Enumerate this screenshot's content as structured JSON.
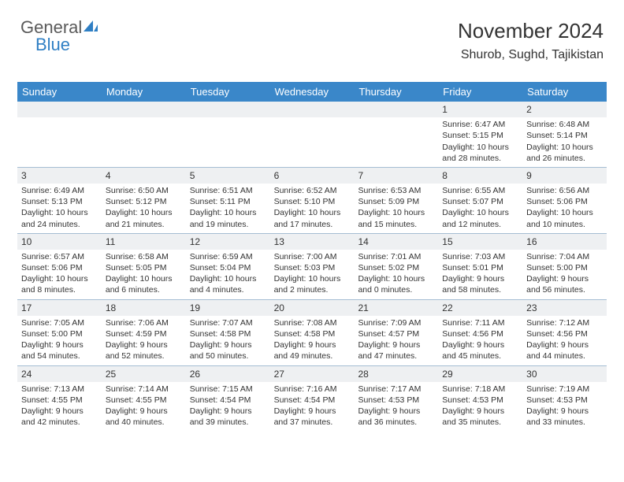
{
  "logo": {
    "text1": "General",
    "text2": "Blue"
  },
  "title": "November 2024",
  "location": "Shurob, Sughd, Tajikistan",
  "colors": {
    "header_bg": "#3a87c9",
    "header_text": "#ffffff",
    "daynum_bg": "#eef0f2",
    "border": "#a5bdd3",
    "logo_gray": "#5a5a5a",
    "logo_blue": "#2f7fc4"
  },
  "day_headers": [
    "Sunday",
    "Monday",
    "Tuesday",
    "Wednesday",
    "Thursday",
    "Friday",
    "Saturday"
  ],
  "weeks": [
    [
      null,
      null,
      null,
      null,
      null,
      {
        "n": "1",
        "sunrise": "Sunrise: 6:47 AM",
        "sunset": "Sunset: 5:15 PM",
        "daylight": "Daylight: 10 hours and 28 minutes."
      },
      {
        "n": "2",
        "sunrise": "Sunrise: 6:48 AM",
        "sunset": "Sunset: 5:14 PM",
        "daylight": "Daylight: 10 hours and 26 minutes."
      }
    ],
    [
      {
        "n": "3",
        "sunrise": "Sunrise: 6:49 AM",
        "sunset": "Sunset: 5:13 PM",
        "daylight": "Daylight: 10 hours and 24 minutes."
      },
      {
        "n": "4",
        "sunrise": "Sunrise: 6:50 AM",
        "sunset": "Sunset: 5:12 PM",
        "daylight": "Daylight: 10 hours and 21 minutes."
      },
      {
        "n": "5",
        "sunrise": "Sunrise: 6:51 AM",
        "sunset": "Sunset: 5:11 PM",
        "daylight": "Daylight: 10 hours and 19 minutes."
      },
      {
        "n": "6",
        "sunrise": "Sunrise: 6:52 AM",
        "sunset": "Sunset: 5:10 PM",
        "daylight": "Daylight: 10 hours and 17 minutes."
      },
      {
        "n": "7",
        "sunrise": "Sunrise: 6:53 AM",
        "sunset": "Sunset: 5:09 PM",
        "daylight": "Daylight: 10 hours and 15 minutes."
      },
      {
        "n": "8",
        "sunrise": "Sunrise: 6:55 AM",
        "sunset": "Sunset: 5:07 PM",
        "daylight": "Daylight: 10 hours and 12 minutes."
      },
      {
        "n": "9",
        "sunrise": "Sunrise: 6:56 AM",
        "sunset": "Sunset: 5:06 PM",
        "daylight": "Daylight: 10 hours and 10 minutes."
      }
    ],
    [
      {
        "n": "10",
        "sunrise": "Sunrise: 6:57 AM",
        "sunset": "Sunset: 5:06 PM",
        "daylight": "Daylight: 10 hours and 8 minutes."
      },
      {
        "n": "11",
        "sunrise": "Sunrise: 6:58 AM",
        "sunset": "Sunset: 5:05 PM",
        "daylight": "Daylight: 10 hours and 6 minutes."
      },
      {
        "n": "12",
        "sunrise": "Sunrise: 6:59 AM",
        "sunset": "Sunset: 5:04 PM",
        "daylight": "Daylight: 10 hours and 4 minutes."
      },
      {
        "n": "13",
        "sunrise": "Sunrise: 7:00 AM",
        "sunset": "Sunset: 5:03 PM",
        "daylight": "Daylight: 10 hours and 2 minutes."
      },
      {
        "n": "14",
        "sunrise": "Sunrise: 7:01 AM",
        "sunset": "Sunset: 5:02 PM",
        "daylight": "Daylight: 10 hours and 0 minutes."
      },
      {
        "n": "15",
        "sunrise": "Sunrise: 7:03 AM",
        "sunset": "Sunset: 5:01 PM",
        "daylight": "Daylight: 9 hours and 58 minutes."
      },
      {
        "n": "16",
        "sunrise": "Sunrise: 7:04 AM",
        "sunset": "Sunset: 5:00 PM",
        "daylight": "Daylight: 9 hours and 56 minutes."
      }
    ],
    [
      {
        "n": "17",
        "sunrise": "Sunrise: 7:05 AM",
        "sunset": "Sunset: 5:00 PM",
        "daylight": "Daylight: 9 hours and 54 minutes."
      },
      {
        "n": "18",
        "sunrise": "Sunrise: 7:06 AM",
        "sunset": "Sunset: 4:59 PM",
        "daylight": "Daylight: 9 hours and 52 minutes."
      },
      {
        "n": "19",
        "sunrise": "Sunrise: 7:07 AM",
        "sunset": "Sunset: 4:58 PM",
        "daylight": "Daylight: 9 hours and 50 minutes."
      },
      {
        "n": "20",
        "sunrise": "Sunrise: 7:08 AM",
        "sunset": "Sunset: 4:58 PM",
        "daylight": "Daylight: 9 hours and 49 minutes."
      },
      {
        "n": "21",
        "sunrise": "Sunrise: 7:09 AM",
        "sunset": "Sunset: 4:57 PM",
        "daylight": "Daylight: 9 hours and 47 minutes."
      },
      {
        "n": "22",
        "sunrise": "Sunrise: 7:11 AM",
        "sunset": "Sunset: 4:56 PM",
        "daylight": "Daylight: 9 hours and 45 minutes."
      },
      {
        "n": "23",
        "sunrise": "Sunrise: 7:12 AM",
        "sunset": "Sunset: 4:56 PM",
        "daylight": "Daylight: 9 hours and 44 minutes."
      }
    ],
    [
      {
        "n": "24",
        "sunrise": "Sunrise: 7:13 AM",
        "sunset": "Sunset: 4:55 PM",
        "daylight": "Daylight: 9 hours and 42 minutes."
      },
      {
        "n": "25",
        "sunrise": "Sunrise: 7:14 AM",
        "sunset": "Sunset: 4:55 PM",
        "daylight": "Daylight: 9 hours and 40 minutes."
      },
      {
        "n": "26",
        "sunrise": "Sunrise: 7:15 AM",
        "sunset": "Sunset: 4:54 PM",
        "daylight": "Daylight: 9 hours and 39 minutes."
      },
      {
        "n": "27",
        "sunrise": "Sunrise: 7:16 AM",
        "sunset": "Sunset: 4:54 PM",
        "daylight": "Daylight: 9 hours and 37 minutes."
      },
      {
        "n": "28",
        "sunrise": "Sunrise: 7:17 AM",
        "sunset": "Sunset: 4:53 PM",
        "daylight": "Daylight: 9 hours and 36 minutes."
      },
      {
        "n": "29",
        "sunrise": "Sunrise: 7:18 AM",
        "sunset": "Sunset: 4:53 PM",
        "daylight": "Daylight: 9 hours and 35 minutes."
      },
      {
        "n": "30",
        "sunrise": "Sunrise: 7:19 AM",
        "sunset": "Sunset: 4:53 PM",
        "daylight": "Daylight: 9 hours and 33 minutes."
      }
    ]
  ]
}
